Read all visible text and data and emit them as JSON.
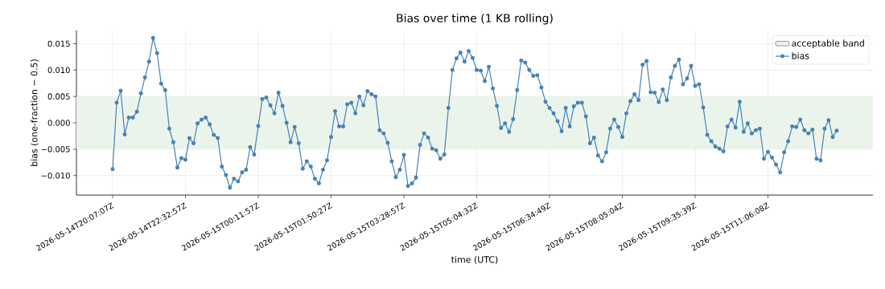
{
  "chart_data": {
    "type": "line",
    "title": "Bias over time (1 KB rolling)",
    "xlabel": "time (UTC)",
    "ylabel": "bias (one-fraction − 0.5)",
    "categories": [
      "2026-05-14T20:07:07Z",
      null,
      null,
      null,
      null,
      null,
      null,
      null,
      null,
      null,
      null,
      null,
      null,
      null,
      null,
      null,
      null,
      null,
      "2026-05-14T22:32:57Z",
      null,
      null,
      null,
      null,
      null,
      null,
      null,
      null,
      null,
      null,
      null,
      null,
      null,
      null,
      null,
      null,
      null,
      "2026-05-15T00:11:57Z",
      null,
      null,
      null,
      null,
      null,
      null,
      null,
      null,
      null,
      null,
      null,
      null,
      null,
      null,
      null,
      null,
      null,
      "2026-05-15T01:50:27Z",
      null,
      null,
      null,
      null,
      null,
      null,
      null,
      null,
      null,
      null,
      null,
      null,
      null,
      null,
      null,
      null,
      null,
      "2026-05-15T03:28:57Z",
      null,
      null,
      null,
      null,
      null,
      null,
      null,
      null,
      null,
      null,
      null,
      null,
      null,
      null,
      null,
      null,
      null,
      "2026-05-15T05:04:32Z",
      null,
      null,
      null,
      null,
      null,
      null,
      null,
      null,
      null,
      null,
      null,
      null,
      null,
      null,
      null,
      null,
      null,
      "2026-05-15T06:34:49Z",
      null,
      null,
      null,
      null,
      null,
      null,
      null,
      null,
      null,
      null,
      null,
      null,
      null,
      null,
      null,
      null,
      null,
      "2026-05-15T08:05:04Z",
      null,
      null,
      null,
      null,
      null,
      null,
      null,
      null,
      null,
      null,
      null,
      null,
      null,
      null,
      null,
      null,
      null,
      "2026-05-15T09:35:39Z",
      null,
      null,
      null,
      null,
      null,
      null,
      null,
      null,
      null,
      null,
      null,
      null,
      null,
      null,
      null,
      null,
      null,
      "2026-05-15T11:06:08Z",
      null,
      null,
      null,
      null,
      null,
      null,
      null,
      null,
      null,
      null,
      null,
      null,
      null,
      null,
      null,
      null,
      null
    ],
    "series": [
      {
        "name": "bias",
        "color": "#4682b4",
        "values": [
          -0.0088,
          0.0038,
          0.0061,
          -0.0022,
          0.001,
          0.001,
          0.0021,
          0.0056,
          0.0086,
          0.0116,
          0.0161,
          0.0132,
          0.0074,
          0.0062,
          -0.0011,
          -0.0037,
          -0.0085,
          -0.0067,
          -0.007,
          -0.0029,
          -0.0039,
          -0.0001,
          0.0006,
          0.001,
          -0.0003,
          -0.0023,
          -0.0029,
          -0.0083,
          -0.0099,
          -0.0123,
          -0.0106,
          -0.0111,
          -0.0094,
          -0.0089,
          -0.0046,
          -0.006,
          -0.0006,
          0.0045,
          0.0048,
          0.0033,
          0.0018,
          0.0057,
          0.0032,
          0.0,
          -0.0037,
          -0.0008,
          -0.0039,
          -0.0087,
          -0.0073,
          -0.0083,
          -0.0106,
          -0.0115,
          -0.0089,
          -0.0071,
          -0.0027,
          0.0022,
          -0.0007,
          -0.0007,
          0.0035,
          0.0038,
          0.0018,
          0.005,
          0.0033,
          0.006,
          0.0054,
          0.005,
          -0.0014,
          -0.002,
          -0.0038,
          -0.0073,
          -0.0103,
          -0.0089,
          -0.0061,
          -0.012,
          -0.0115,
          -0.0104,
          -0.0042,
          -0.002,
          -0.0028,
          -0.0049,
          -0.0052,
          -0.0068,
          -0.006,
          0.0028,
          0.01,
          0.0122,
          0.0133,
          0.0116,
          0.0136,
          0.0123,
          0.01,
          0.0099,
          0.0079,
          0.0106,
          0.0065,
          0.0032,
          -0.001,
          -0.0001,
          -0.0017,
          0.0007,
          0.0062,
          0.0118,
          0.0114,
          0.01,
          0.0089,
          0.009,
          0.0067,
          0.004,
          0.0028,
          0.0018,
          0.0003,
          -0.0016,
          0.0028,
          -0.0007,
          0.0031,
          0.0038,
          0.0038,
          0.0012,
          -0.0039,
          -0.0028,
          -0.0062,
          -0.0073,
          -0.0056,
          -0.0011,
          0.0006,
          -0.0008,
          -0.0027,
          0.0018,
          0.0041,
          0.0054,
          0.0043,
          0.011,
          0.0117,
          0.0058,
          0.0057,
          0.0039,
          0.0063,
          0.0043,
          0.0086,
          0.0108,
          0.012,
          0.0073,
          0.0084,
          0.0108,
          0.007,
          0.0073,
          0.0029,
          -0.0023,
          -0.0035,
          -0.0045,
          -0.0049,
          -0.0054,
          -0.0007,
          0.0006,
          -0.0009,
          0.004,
          -0.0017,
          -0.0001,
          -0.002,
          -0.0014,
          -0.0011,
          -0.0068,
          -0.0055,
          -0.0066,
          -0.0079,
          -0.0094,
          -0.0056,
          -0.0035,
          -0.0007,
          -0.0008,
          0.0006,
          -0.0014,
          -0.002,
          -0.0013,
          -0.0068,
          -0.0071,
          -0.0011,
          0.0005,
          -0.0027,
          -0.0015
        ]
      }
    ],
    "bands": [
      {
        "axis": "y",
        "from": -0.005,
        "to": 0.005,
        "label": "acceptable band",
        "color": "#ebf4eb"
      }
    ],
    "ylim": [
      -0.0137,
      0.0175
    ],
    "yticks": [
      {
        "value": -0.01,
        "label": "−0.010"
      },
      {
        "value": -0.005,
        "label": "−0.005"
      },
      {
        "value": 0.0,
        "label": "0.000"
      },
      {
        "value": 0.005,
        "label": "0.005"
      },
      {
        "value": 0.01,
        "label": "0.010"
      },
      {
        "value": 0.015,
        "label": "0.015"
      }
    ],
    "grid": true,
    "legend": "top right",
    "marker": "circle",
    "line_style": "solid"
  }
}
